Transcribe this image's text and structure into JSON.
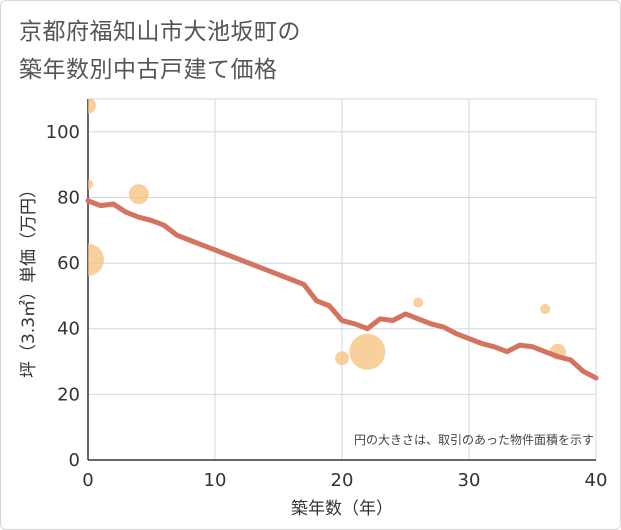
{
  "title_line1": "京都府福知山市大池坂町の",
  "title_line2": "築年数別中古戸建て価格",
  "chart_data": {
    "type": "scatter+line",
    "title": "京都府福知山市大池坂町の築年数別中古戸建て価格",
    "xlabel": "築年数（年）",
    "ylabel": "坪（3.3㎡）単価（万円）",
    "xlim": [
      0,
      40
    ],
    "ylim": [
      0,
      110
    ],
    "x_ticks": [
      0,
      10,
      20,
      30,
      40
    ],
    "y_ticks": [
      0,
      20,
      40,
      60,
      80,
      100
    ],
    "grid": true,
    "note": "円の大きさは、取引のあった物件面積を示す",
    "colors": {
      "line": "#d4735e",
      "bubble": "#f5c07a",
      "grid": "#cfd8e3"
    },
    "bubbles": [
      {
        "x": 0,
        "y": 108,
        "size": 8
      },
      {
        "x": 0,
        "y": 84,
        "size": 5
      },
      {
        "x": 0,
        "y": 61,
        "size": 16
      },
      {
        "x": 4,
        "y": 81,
        "size": 10
      },
      {
        "x": 20,
        "y": 31,
        "size": 7
      },
      {
        "x": 22,
        "y": 33,
        "size": 18
      },
      {
        "x": 26,
        "y": 48,
        "size": 5
      },
      {
        "x": 36,
        "y": 46,
        "size": 5
      },
      {
        "x": 37,
        "y": 33,
        "size": 8
      }
    ],
    "line": {
      "x": [
        0,
        1,
        2,
        3,
        4,
        5,
        6,
        7,
        8,
        9,
        10,
        11,
        12,
        13,
        14,
        15,
        16,
        17,
        18,
        19,
        20,
        21,
        22,
        23,
        24,
        25,
        26,
        27,
        28,
        29,
        30,
        31,
        32,
        33,
        34,
        35,
        36,
        37,
        38,
        39,
        40
      ],
      "y": [
        79,
        77.5,
        78,
        75.5,
        74,
        73,
        71.5,
        68.5,
        67,
        65.5,
        64,
        62.5,
        61,
        59.5,
        58,
        56.5,
        55,
        53.5,
        48.5,
        47,
        42.5,
        41.5,
        40,
        43,
        42.5,
        44.5,
        43,
        41.5,
        40.5,
        38.5,
        37,
        35.5,
        34.5,
        33,
        35,
        34.5,
        33,
        31.5,
        30.5,
        27,
        25
      ]
    }
  }
}
